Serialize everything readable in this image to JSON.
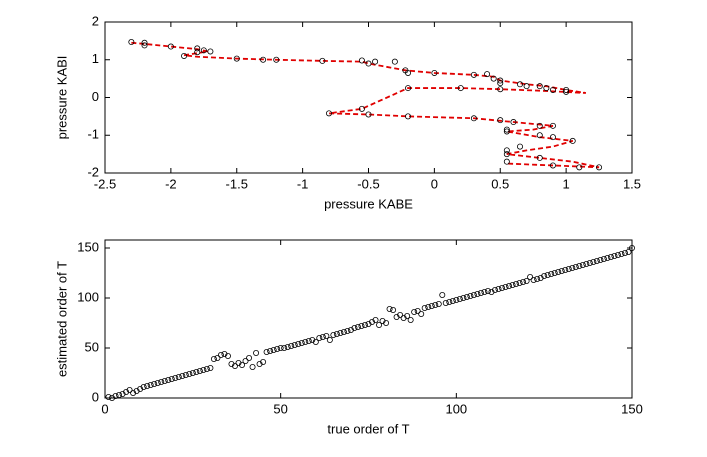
{
  "chart_data": [
    {
      "type": "scatter",
      "xlabel": "pressure KABE",
      "ylabel": "pressure KABI",
      "xlim": [
        -2.5,
        1.5
      ],
      "xticks": [
        -2.5,
        -2,
        -1.5,
        -1,
        -0.5,
        0,
        0.5,
        1,
        1.5
      ],
      "ylim": [
        -2,
        2
      ],
      "yticks": [
        -2,
        -1,
        0,
        1,
        2
      ],
      "series": [
        {
          "color": "#e00000",
          "linestyle": "dashed",
          "x": [
            -2.3,
            -2.2,
            -2.0,
            -1.8,
            -1.72,
            -1.9,
            -1.8,
            -1.5,
            -1.2,
            -0.85,
            -0.55,
            -0.5,
            -0.22,
            0,
            0.3,
            0.45,
            0.5,
            0.7,
            0.85,
            1.0,
            1.15,
            0.8,
            0.5,
            0.2,
            -0.2,
            -0.55,
            -0.8,
            -0.5,
            -0.2,
            0.3,
            0.6,
            0.9,
            0.75,
            0.55,
            0.8,
            1.05,
            0.9,
            0.7,
            0.55,
            0.8,
            1.05,
            1.25,
            0.9,
            0.55
          ],
          "y": [
            1.45,
            1.42,
            1.35,
            1.28,
            1.22,
            1.12,
            1.08,
            1.03,
            1.0,
            0.97,
            0.95,
            0.9,
            0.72,
            0.65,
            0.6,
            0.55,
            0.45,
            0.35,
            0.3,
            0.2,
            0.12,
            0.18,
            0.22,
            0.25,
            0.25,
            -0.3,
            -0.42,
            -0.45,
            -0.5,
            -0.55,
            -0.65,
            -0.75,
            -0.85,
            -0.9,
            -1.05,
            -1.15,
            -1.3,
            -1.4,
            -1.5,
            -1.6,
            -1.7,
            -1.85,
            -1.8,
            -1.75
          ]
        },
        {
          "color": "#000000",
          "marker": "circle",
          "x": [
            -2.3,
            -2.2,
            -2.2,
            -2.0,
            -1.8,
            -1.8,
            -1.75,
            -1.7,
            -1.9,
            -1.5,
            -1.3,
            -1.2,
            -0.85,
            -0.55,
            -0.5,
            -0.45,
            -0.3,
            -0.22,
            -0.2,
            0,
            0.3,
            0.4,
            0.45,
            0.5,
            0.5,
            0.65,
            0.7,
            0.8,
            0.85,
            0.9,
            1.0,
            1.0,
            0.5,
            0.2,
            -0.2,
            -0.55,
            -0.8,
            -0.5,
            -0.2,
            0.3,
            0.5,
            0.6,
            0.8,
            0.9,
            0.55,
            0.55,
            0.8,
            0.9,
            1.05,
            0.65,
            0.55,
            0.55,
            0.8,
            1.25,
            0.9,
            0.55,
            1.1
          ],
          "y": [
            1.47,
            1.45,
            1.38,
            1.35,
            1.3,
            1.2,
            1.25,
            1.22,
            1.1,
            1.03,
            1.0,
            1.0,
            0.97,
            0.98,
            0.9,
            0.95,
            0.95,
            0.72,
            0.65,
            0.65,
            0.6,
            0.62,
            0.5,
            0.45,
            0.38,
            0.35,
            0.3,
            0.3,
            0.25,
            0.2,
            0.2,
            0.15,
            0.22,
            0.25,
            0.25,
            -0.3,
            -0.42,
            -0.45,
            -0.5,
            -0.55,
            -0.6,
            -0.65,
            -0.75,
            -0.75,
            -0.85,
            -0.9,
            -1.0,
            -1.05,
            -1.15,
            -1.3,
            -1.4,
            -1.5,
            -1.6,
            -1.85,
            -1.8,
            -1.7,
            -1.85
          ]
        }
      ]
    },
    {
      "type": "scatter",
      "xlabel": "true order of T",
      "ylabel": "estimated order of T",
      "xlim": [
        0,
        150
      ],
      "xticks": [
        0,
        50,
        100,
        150
      ],
      "ylim": [
        0,
        158
      ],
      "yticks": [
        0,
        50,
        100,
        150
      ],
      "color": "#000000",
      "marker": "circle",
      "x": [
        1,
        2,
        3,
        4,
        5,
        6,
        7,
        8,
        9,
        10,
        11,
        12,
        13,
        14,
        15,
        16,
        17,
        18,
        19,
        20,
        21,
        22,
        23,
        24,
        25,
        26,
        27,
        28,
        29,
        30,
        31,
        32,
        33,
        34,
        35,
        36,
        37,
        38,
        39,
        40,
        41,
        42,
        43,
        44,
        45,
        46,
        47,
        48,
        49,
        50,
        51,
        52,
        53,
        54,
        55,
        56,
        57,
        58,
        59,
        60,
        61,
        62,
        63,
        64,
        65,
        66,
        67,
        68,
        69,
        70,
        71,
        72,
        73,
        74,
        75,
        76,
        77,
        78,
        79,
        80,
        81,
        82,
        83,
        84,
        85,
        86,
        87,
        88,
        89,
        90,
        91,
        92,
        93,
        94,
        95,
        96,
        97,
        98,
        99,
        100,
        101,
        102,
        103,
        104,
        105,
        106,
        107,
        108,
        109,
        110,
        111,
        112,
        113,
        114,
        115,
        116,
        117,
        118,
        119,
        120,
        121,
        122,
        123,
        124,
        125,
        126,
        127,
        128,
        129,
        130,
        131,
        132,
        133,
        134,
        135,
        136,
        137,
        138,
        139,
        140,
        141,
        142,
        143,
        144,
        145,
        146,
        147,
        148,
        149,
        150
      ],
      "values": [
        1,
        0,
        2,
        3,
        4,
        6,
        8,
        5,
        7,
        9,
        11,
        12,
        13,
        14,
        15,
        16,
        17,
        18,
        19,
        20,
        21,
        22,
        23,
        24,
        25,
        26,
        27,
        28,
        29,
        30,
        39,
        40,
        43,
        44,
        42,
        34,
        32,
        35,
        33,
        37,
        40,
        31,
        45,
        34,
        36,
        46,
        47,
        48,
        49,
        50,
        50,
        51,
        52,
        53,
        54,
        55,
        56,
        57,
        58,
        56,
        60,
        61,
        62,
        58,
        63,
        64,
        65,
        66,
        67,
        68,
        70,
        71,
        72,
        73,
        74,
        76,
        78,
        73,
        77,
        75,
        89,
        88,
        81,
        83,
        80,
        82,
        78,
        86,
        87,
        84,
        90,
        91,
        92,
        93,
        94,
        103,
        95,
        96,
        97,
        98,
        99,
        100,
        101,
        102,
        103,
        104,
        105,
        106,
        107,
        106,
        108,
        109,
        110,
        111,
        112,
        113,
        114,
        115,
        116,
        117,
        121,
        118,
        119,
        120,
        122,
        123,
        124,
        125,
        126,
        127,
        128,
        129,
        130,
        131,
        132,
        133,
        134,
        135,
        136,
        137,
        138,
        139,
        140,
        141,
        142,
        143,
        144,
        145,
        146,
        150
      ]
    }
  ]
}
